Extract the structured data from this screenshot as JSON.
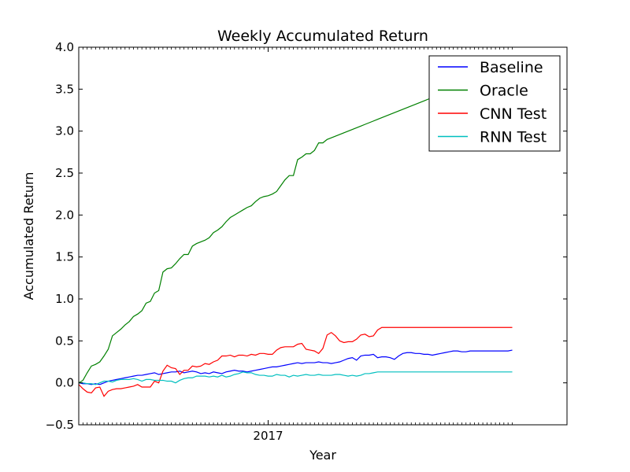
{
  "chart_data": {
    "type": "line",
    "title": "Weekly Accumulated Return",
    "xlabel": "Year",
    "ylabel": "Accumulated Return",
    "ylim": [
      -0.5,
      4.0
    ],
    "yticks": [
      "−0.5",
      "0.0",
      "0.5",
      "1.0",
      "1.5",
      "2.0",
      "2.5",
      "3.0",
      "3.5",
      "4.0"
    ],
    "x_tick_labels": [
      "2017"
    ],
    "x_tick_week": 45,
    "num_weeks": 104,
    "x_range": [
      0,
      116
    ],
    "legend_position": "upper-right",
    "grid": false,
    "series": [
      {
        "name": "Baseline",
        "color": "#0000ff",
        "values": [
          0.0,
          -0.01,
          -0.01,
          -0.02,
          -0.01,
          -0.02,
          0.0,
          0.02,
          0.03,
          0.04,
          0.05,
          0.06,
          0.07,
          0.08,
          0.09,
          0.09,
          0.1,
          0.11,
          0.12,
          0.1,
          0.11,
          0.12,
          0.13,
          0.13,
          0.14,
          0.12,
          0.13,
          0.14,
          0.13,
          0.11,
          0.12,
          0.11,
          0.13,
          0.12,
          0.11,
          0.13,
          0.14,
          0.15,
          0.14,
          0.14,
          0.13,
          0.14,
          0.15,
          0.16,
          0.17,
          0.18,
          0.19,
          0.19,
          0.2,
          0.21,
          0.22,
          0.23,
          0.24,
          0.23,
          0.24,
          0.24,
          0.24,
          0.25,
          0.24,
          0.24,
          0.23,
          0.24,
          0.25,
          0.27,
          0.29,
          0.3,
          0.27,
          0.32,
          0.33,
          0.33,
          0.34,
          0.3,
          0.31,
          0.31,
          0.3,
          0.28,
          0.32,
          0.35,
          0.36,
          0.36,
          0.35,
          0.35,
          0.34,
          0.34,
          0.33,
          0.34,
          0.35,
          0.36,
          0.37,
          0.38,
          0.38,
          0.37,
          0.37,
          0.38,
          0.38,
          0.38,
          0.38,
          0.38,
          0.38,
          0.38,
          0.38,
          0.38,
          0.38,
          0.39
        ]
      },
      {
        "name": "Oracle",
        "color": "#008000",
        "values": [
          0.0,
          0.03,
          0.12,
          0.2,
          0.22,
          0.25,
          0.32,
          0.4,
          0.56,
          0.6,
          0.64,
          0.69,
          0.73,
          0.79,
          0.82,
          0.86,
          0.95,
          0.97,
          1.07,
          1.1,
          1.32,
          1.36,
          1.37,
          1.42,
          1.48,
          1.53,
          1.53,
          1.63,
          1.66,
          1.68,
          1.7,
          1.73,
          1.79,
          1.82,
          1.86,
          1.92,
          1.97,
          2.0,
          2.03,
          2.06,
          2.09,
          2.11,
          2.16,
          2.2,
          2.22,
          2.23,
          2.25,
          2.28,
          2.35,
          2.42,
          2.47,
          2.47,
          2.66,
          2.69,
          2.73,
          2.73,
          2.77,
          2.86,
          2.86,
          2.9,
          2.92,
          2.94,
          2.96,
          2.98,
          3.0,
          3.02,
          3.04,
          3.06,
          3.08,
          3.1,
          3.12,
          3.14,
          3.16,
          3.18,
          3.2,
          3.22,
          3.24,
          3.26,
          3.28,
          3.3,
          3.32,
          3.34,
          3.36,
          3.38,
          3.4,
          3.42,
          3.44,
          3.46,
          3.48,
          3.5,
          3.52,
          3.54,
          3.56,
          3.58,
          3.6,
          3.62,
          3.64,
          3.66,
          3.68,
          3.7,
          3.72,
          3.74,
          3.76,
          3.78
        ]
      },
      {
        "name": "CNN Test",
        "color": "#ff0000",
        "values": [
          -0.02,
          -0.07,
          -0.11,
          -0.12,
          -0.06,
          -0.05,
          -0.16,
          -0.1,
          -0.08,
          -0.07,
          -0.07,
          -0.06,
          -0.05,
          -0.04,
          -0.02,
          -0.05,
          -0.05,
          -0.05,
          0.02,
          0.0,
          0.14,
          0.21,
          0.18,
          0.17,
          0.1,
          0.15,
          0.15,
          0.2,
          0.19,
          0.2,
          0.23,
          0.22,
          0.25,
          0.27,
          0.32,
          0.32,
          0.33,
          0.31,
          0.33,
          0.33,
          0.32,
          0.34,
          0.33,
          0.35,
          0.35,
          0.34,
          0.34,
          0.39,
          0.42,
          0.43,
          0.43,
          0.43,
          0.46,
          0.47,
          0.4,
          0.39,
          0.38,
          0.35,
          0.41,
          0.57,
          0.6,
          0.56,
          0.5,
          0.48,
          0.49,
          0.49,
          0.52,
          0.57,
          0.58,
          0.55,
          0.56,
          0.63,
          0.66,
          0.66,
          0.66,
          0.66,
          0.66,
          0.66,
          0.66,
          0.66,
          0.66,
          0.66,
          0.66,
          0.66,
          0.66,
          0.66,
          0.66,
          0.66,
          0.66,
          0.66,
          0.66,
          0.66,
          0.66,
          0.66,
          0.66,
          0.66,
          0.66,
          0.66,
          0.66,
          0.66,
          0.66,
          0.66,
          0.66,
          0.66
        ]
      },
      {
        "name": "RNN Test",
        "color": "#00bfbf",
        "values": [
          0.0,
          0.0,
          -0.01,
          -0.01,
          -0.02,
          0.0,
          0.02,
          0.02,
          0.01,
          0.03,
          0.04,
          0.04,
          0.04,
          0.05,
          0.04,
          0.02,
          0.04,
          0.04,
          0.03,
          0.03,
          0.03,
          0.02,
          0.02,
          0.0,
          0.03,
          0.05,
          0.06,
          0.06,
          0.08,
          0.08,
          0.08,
          0.07,
          0.08,
          0.07,
          0.09,
          0.07,
          0.08,
          0.1,
          0.11,
          0.13,
          0.12,
          0.12,
          0.1,
          0.09,
          0.09,
          0.08,
          0.08,
          0.1,
          0.09,
          0.09,
          0.07,
          0.09,
          0.08,
          0.09,
          0.1,
          0.09,
          0.09,
          0.1,
          0.09,
          0.09,
          0.09,
          0.1,
          0.1,
          0.09,
          0.08,
          0.09,
          0.08,
          0.09,
          0.11,
          0.11,
          0.12,
          0.13,
          0.13,
          0.13,
          0.13,
          0.13,
          0.13,
          0.13,
          0.13,
          0.13,
          0.13,
          0.13,
          0.13,
          0.13,
          0.13,
          0.13,
          0.13,
          0.13,
          0.13,
          0.13,
          0.13,
          0.13,
          0.13,
          0.13,
          0.13,
          0.13,
          0.13,
          0.13,
          0.13,
          0.13,
          0.13,
          0.13,
          0.13,
          0.13
        ]
      }
    ]
  }
}
